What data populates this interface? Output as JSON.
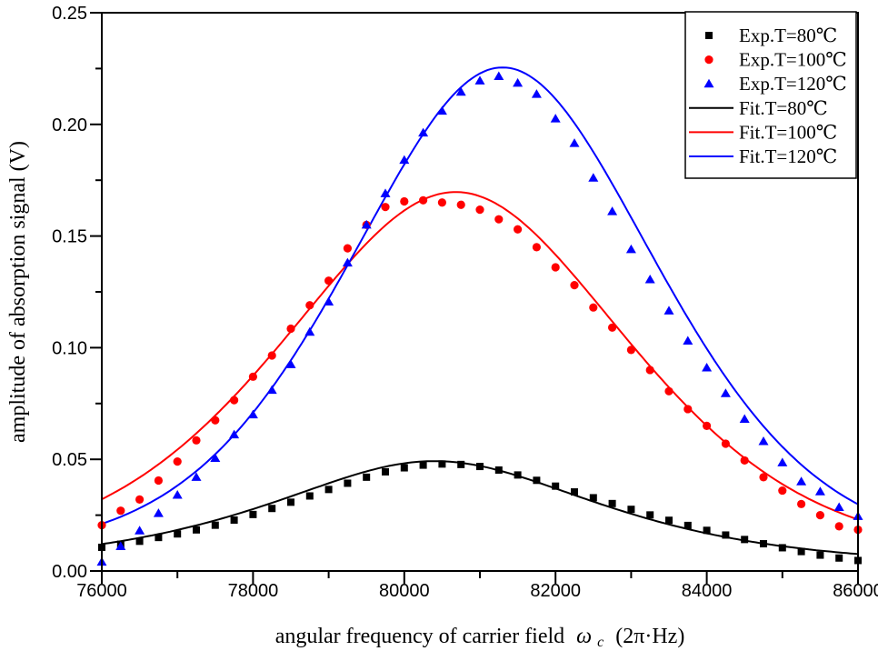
{
  "chart_data": {
    "type": "scatter",
    "title": "",
    "xlabel": "angular frequency of carrier field ωc (2π·Hz)",
    "xlabel_parts": {
      "prefix": "angular frequency of carrier field",
      "omega": "ω",
      "sub": "c",
      "suffix": "(2π·Hz)"
    },
    "ylabel": "amplitude of absorption signal (V)",
    "xlim": [
      76000,
      86000
    ],
    "ylim": [
      0,
      0.25
    ],
    "grid": false,
    "x_ticks": {
      "major_values": [
        76000,
        78000,
        80000,
        82000,
        84000,
        86000
      ],
      "major_labels": [
        "76000",
        "78000",
        "80000",
        "82000",
        "84000",
        "86000"
      ],
      "minor_values": [
        77000,
        79000,
        81000,
        83000,
        85000
      ]
    },
    "y_ticks": {
      "major_values": [
        0.0,
        0.05,
        0.1,
        0.15,
        0.2,
        0.25
      ],
      "major_labels": [
        "0.00",
        "0.05",
        "0.10",
        "0.15",
        "0.20",
        "0.25"
      ],
      "minor_values": [
        0.025,
        0.075,
        0.125,
        0.175,
        0.225
      ]
    },
    "x_start": 76000,
    "x_step": 250,
    "series": [
      {
        "name": "Exp.T=80℃",
        "kind": "scatter",
        "marker": "square",
        "color": "#000000",
        "values": [
          0.0106,
          0.012,
          0.0133,
          0.015,
          0.0166,
          0.0184,
          0.0205,
          0.0228,
          0.0253,
          0.028,
          0.0308,
          0.0336,
          0.0365,
          0.0393,
          0.042,
          0.0444,
          0.0462,
          0.0474,
          0.0479,
          0.0477,
          0.0468,
          0.0452,
          0.043,
          0.0406,
          0.038,
          0.0354,
          0.0328,
          0.0302,
          0.0276,
          0.0251,
          0.0227,
          0.0204,
          0.0182,
          0.0161,
          0.0141,
          0.0122,
          0.0104,
          0.0087,
          0.0071,
          0.0058,
          0.0047
        ]
      },
      {
        "name": "Exp.T=100℃",
        "kind": "scatter",
        "marker": "circle",
        "color": "#ff0000",
        "values": [
          0.0205,
          0.027,
          0.032,
          0.0405,
          0.049,
          0.0585,
          0.0675,
          0.0765,
          0.087,
          0.0965,
          0.1085,
          0.119,
          0.13,
          0.1445,
          0.155,
          0.163,
          0.1655,
          0.166,
          0.165,
          0.164,
          0.1618,
          0.1575,
          0.153,
          0.145,
          0.136,
          0.128,
          0.118,
          0.109,
          0.099,
          0.09,
          0.0805,
          0.0725,
          0.065,
          0.057,
          0.0495,
          0.042,
          0.036,
          0.03,
          0.025,
          0.02,
          0.0185
        ]
      },
      {
        "name": "Exp.T=120℃",
        "kind": "scatter",
        "marker": "triangle",
        "color": "#0000ff",
        "values": [
          0.004,
          0.011,
          0.018,
          0.0258,
          0.034,
          0.042,
          0.0505,
          0.061,
          0.07,
          0.081,
          0.0925,
          0.107,
          0.1205,
          0.138,
          0.155,
          0.169,
          0.184,
          0.1962,
          0.206,
          0.2145,
          0.2195,
          0.2215,
          0.2185,
          0.2135,
          0.2025,
          0.1915,
          0.176,
          0.161,
          0.144,
          0.1305,
          0.1165,
          0.103,
          0.091,
          0.0795,
          0.068,
          0.058,
          0.0485,
          0.04,
          0.0355,
          0.0285,
          0.0245
        ]
      },
      {
        "name": "Fit.T=80℃",
        "kind": "fit-line",
        "color": "#000000",
        "model": "pseudo-voigt",
        "amplitude": 0.0492,
        "center": 80400,
        "fwhm": 5400,
        "eta": 0.75
      },
      {
        "name": "Fit.T=100℃",
        "kind": "fit-line",
        "color": "#ff0000",
        "model": "pseudo-voigt",
        "amplitude": 0.1697,
        "center": 80680,
        "fwhm": 5500,
        "eta": 0.45
      },
      {
        "name": "Fit.T=120℃",
        "kind": "fit-line",
        "color": "#0000ff",
        "model": "pseudo-voigt",
        "amplitude": 0.2255,
        "center": 81300,
        "fwhm": 4920,
        "eta": 0.39
      }
    ],
    "legend": {
      "position": "top-right",
      "items": [
        {
          "label": "Exp.T=80℃",
          "series_index": 0
        },
        {
          "label": "Exp.T=100℃",
          "series_index": 1
        },
        {
          "label": "Exp.T=120℃",
          "series_index": 2
        },
        {
          "label": "Fit.T=80℃",
          "series_index": 3
        },
        {
          "label": "Fit.T=100℃",
          "series_index": 4
        },
        {
          "label": "Fit.T=120℃",
          "series_index": 5
        }
      ]
    },
    "colors": {
      "black": "#000000",
      "red": "#ff0000",
      "blue": "#0000ff",
      "frame": "#000000",
      "background": "#ffffff"
    }
  }
}
